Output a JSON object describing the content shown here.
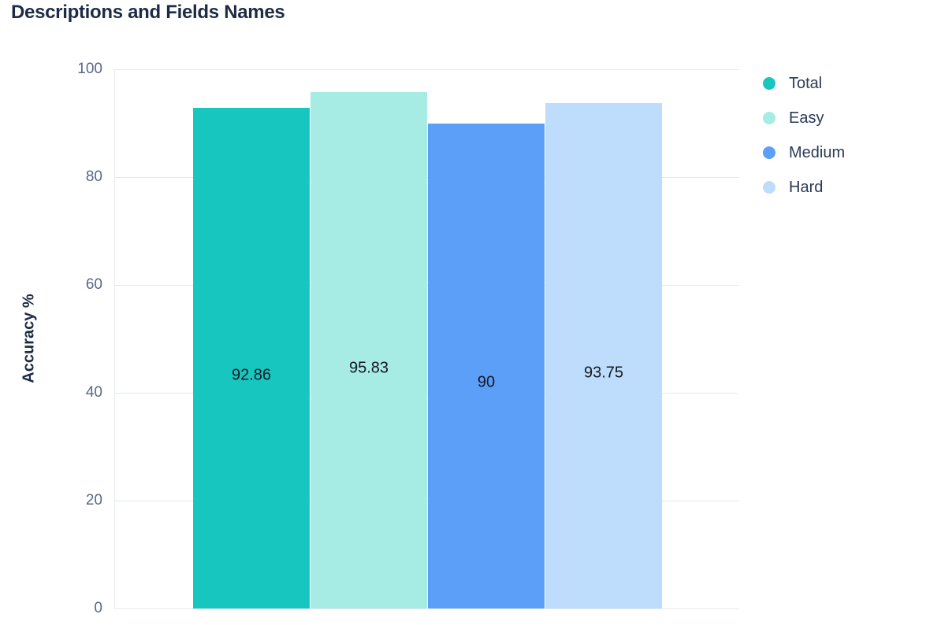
{
  "page": {
    "title": "Descriptions and Fields Names"
  },
  "colors": {
    "background": "#ffffff",
    "title_text": "#1e2b45",
    "axis_title_text": "#1e2b45",
    "tick_text": "#5a6787",
    "grid_line": "#e4e8f4",
    "axis_line": "#e4e8f4",
    "bar_label_text": "#14181f",
    "legend_text": "#2b3a55"
  },
  "chart_data": {
    "type": "bar",
    "title": "Descriptions and Fields Names",
    "xlabel": "",
    "ylabel": "Accuracy %",
    "ylim": [
      0,
      100
    ],
    "yticks": [
      0,
      20,
      40,
      60,
      80,
      100
    ],
    "grid": true,
    "legend_position": "right",
    "categories": [
      ""
    ],
    "series": [
      {
        "name": "Total",
        "values": [
          92.86
        ],
        "label": "92.86",
        "color": "#17c6be"
      },
      {
        "name": "Easy",
        "values": [
          95.83
        ],
        "label": "95.83",
        "color": "#a7ece4"
      },
      {
        "name": "Medium",
        "values": [
          90
        ],
        "label": "90",
        "color": "#5c9ff9"
      },
      {
        "name": "Hard",
        "values": [
          93.75
        ],
        "label": "93.75",
        "color": "#bedcfc"
      }
    ]
  }
}
